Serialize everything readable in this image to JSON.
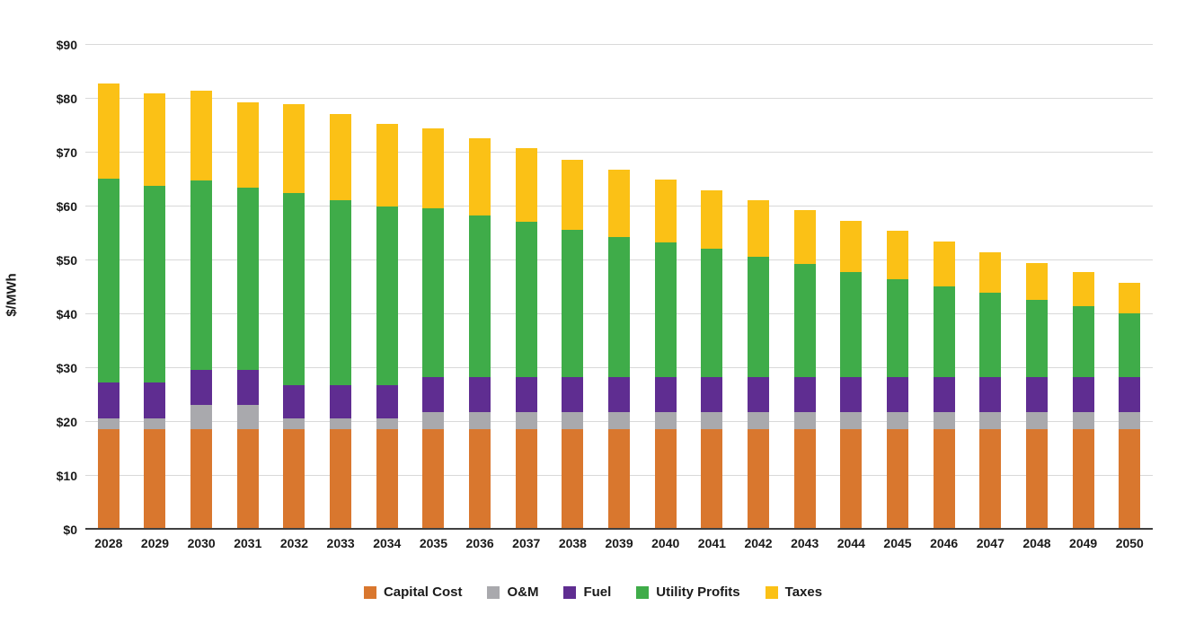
{
  "colors": {
    "background": "#ffffff",
    "gridline": "#d9d9d9",
    "axis_line": "#404040",
    "text": "#1a1a1a"
  },
  "chart_data": {
    "type": "bar",
    "stacked": true,
    "title": "",
    "xlabel": "",
    "ylabel": "$/MWh",
    "ylim": [
      0,
      90
    ],
    "ytick_step": 10,
    "ytick_labels": [
      "$0",
      "$10",
      "$20",
      "$30",
      "$40",
      "$50",
      "$60",
      "$70",
      "$80",
      "$90"
    ],
    "grid": "horizontal",
    "legend_position": "bottom-center",
    "categories": [
      "2028",
      "2029",
      "2030",
      "2031",
      "2032",
      "2033",
      "2034",
      "2035",
      "2036",
      "2037",
      "2038",
      "2039",
      "2040",
      "2041",
      "2042",
      "2043",
      "2044",
      "2045",
      "2046",
      "2047",
      "2048",
      "2049",
      "2050"
    ],
    "series": [
      {
        "name": "Capital Cost",
        "color": "#d9772e",
        "values": [
          18.7,
          18.7,
          18.7,
          18.7,
          18.7,
          18.7,
          18.7,
          18.7,
          18.7,
          18.7,
          18.7,
          18.7,
          18.7,
          18.7,
          18.7,
          18.7,
          18.7,
          18.7,
          18.7,
          18.7,
          18.7,
          18.7,
          18.7
        ]
      },
      {
        "name": "O&M",
        "color": "#a9a9ad",
        "values": [
          2.0,
          2.0,
          4.5,
          4.5,
          2.0,
          2.0,
          2.0,
          3.1,
          3.1,
          3.1,
          3.1,
          3.1,
          3.1,
          3.1,
          3.1,
          3.1,
          3.1,
          3.1,
          3.1,
          3.1,
          3.1,
          3.1,
          3.1
        ]
      },
      {
        "name": "Fuel",
        "color": "#5f2d91",
        "values": [
          6.6,
          6.6,
          6.4,
          6.4,
          6.1,
          6.1,
          6.1,
          6.5,
          6.5,
          6.5,
          6.5,
          6.5,
          6.5,
          6.5,
          6.5,
          6.5,
          6.5,
          6.5,
          6.5,
          6.5,
          6.5,
          6.5,
          6.5
        ]
      },
      {
        "name": "Utility Profits",
        "color": "#3fac49",
        "values": [
          37.9,
          36.6,
          35.2,
          33.9,
          35.7,
          34.3,
          33.2,
          31.4,
          30.0,
          28.9,
          27.4,
          26.0,
          25.0,
          23.8,
          22.4,
          21.0,
          19.6,
          18.2,
          16.9,
          15.7,
          14.4,
          13.2,
          11.9
        ]
      },
      {
        "name": "Taxes",
        "color": "#fbc116",
        "values": [
          17.6,
          17.1,
          16.7,
          15.9,
          16.5,
          16.1,
          15.3,
          14.8,
          14.4,
          13.6,
          12.9,
          12.5,
          11.7,
          10.9,
          10.5,
          10.0,
          9.4,
          9.0,
          8.3,
          7.5,
          6.8,
          6.3,
          5.7
        ]
      }
    ],
    "totals": [
      82.8,
      81.0,
      81.5,
      79.4,
      79.0,
      77.2,
      75.3,
      74.5,
      72.7,
      70.8,
      68.6,
      66.8,
      65.0,
      63.0,
      61.2,
      59.3,
      57.3,
      55.5,
      53.5,
      51.5,
      49.5,
      47.8,
      45.9
    ]
  }
}
